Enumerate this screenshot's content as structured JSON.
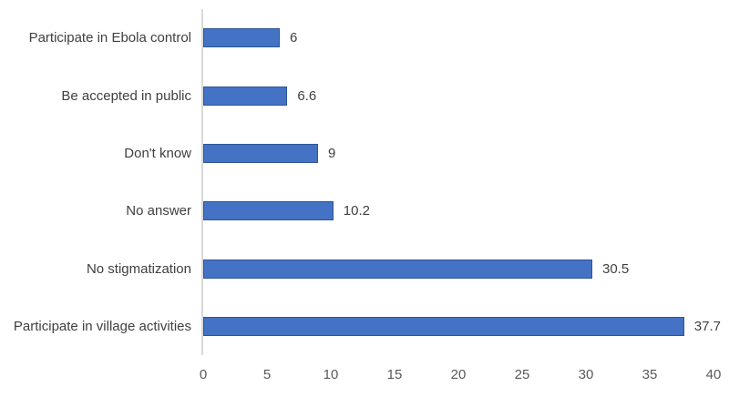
{
  "chart_data": {
    "type": "bar",
    "orientation": "horizontal",
    "title": "",
    "xlabel": "",
    "ylabel": "",
    "categories": [
      "Participate in Ebola control",
      "Be accepted in public",
      "Don't know",
      "No answer",
      "No stigmatization",
      "Participate in village activities"
    ],
    "values": [
      6,
      6.6,
      9,
      10.2,
      30.5,
      37.7
    ],
    "data_labels": [
      "6",
      "6.6",
      "9",
      "10.2",
      "30.5",
      "37.7"
    ],
    "xlim": [
      0,
      40
    ],
    "x_ticks": [
      0,
      5,
      10,
      15,
      20,
      25,
      30,
      35,
      40
    ],
    "grid": false,
    "legend": "none",
    "colors": {
      "bar_fill": "#4472C4",
      "bar_border": "#2F5597",
      "axis_line": "#D9D9D9",
      "tick_label": "#595959",
      "category_label": "#3f3f3f",
      "value_label": "#3f3f3f",
      "background": "#ffffff"
    }
  }
}
